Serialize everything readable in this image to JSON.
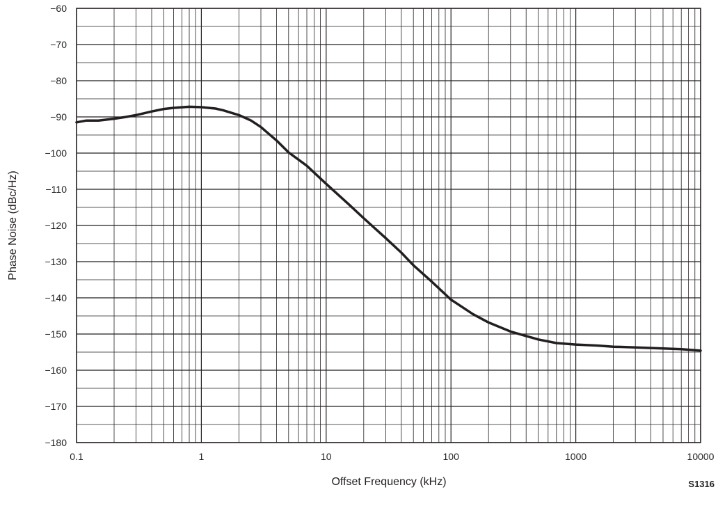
{
  "chart_data": {
    "type": "line",
    "title": "",
    "xlabel": "Offset Frequency (kHz)",
    "ylabel": "Phase Noise (dBc/Hz)",
    "xscale": "log",
    "xlim": [
      0.1,
      10000
    ],
    "ylim": [
      -180,
      -60
    ],
    "grid": true,
    "legend": "none",
    "line_color": "#231f20",
    "grid_color": "#231f20",
    "x_ticks": [
      {
        "value": 0.1,
        "label": "0.1"
      },
      {
        "value": 1,
        "label": "1"
      },
      {
        "value": 10,
        "label": "10"
      },
      {
        "value": 100,
        "label": "100"
      },
      {
        "value": 1000,
        "label": "1000"
      },
      {
        "value": 10000,
        "label": "10000"
      }
    ],
    "y_ticks": [
      {
        "value": -60,
        "label": "−60"
      },
      {
        "value": -70,
        "label": "−70"
      },
      {
        "value": -80,
        "label": "−80"
      },
      {
        "value": -90,
        "label": "−90"
      },
      {
        "value": -100,
        "label": "−100"
      },
      {
        "value": -110,
        "label": "−110"
      },
      {
        "value": -120,
        "label": "−120"
      },
      {
        "value": -130,
        "label": "−130"
      },
      {
        "value": -140,
        "label": "−140"
      },
      {
        "value": -150,
        "label": "−150"
      },
      {
        "value": -160,
        "label": "−160"
      },
      {
        "value": -170,
        "label": "−170"
      },
      {
        "value": -180,
        "label": "−180"
      }
    ],
    "series": [
      {
        "x": [
          0.1,
          0.12,
          0.15,
          0.2,
          0.25,
          0.3,
          0.4,
          0.5,
          0.6,
          0.8,
          1.0,
          1.3,
          1.5,
          2.0,
          2.5,
          3.0,
          4.0,
          5.0,
          7.0,
          10,
          15,
          20,
          30,
          40,
          50,
          70,
          100,
          150,
          200,
          300,
          500,
          700,
          1000,
          1500,
          2000,
          3000,
          5000,
          7000,
          10000
        ],
        "y": [
          -91.5,
          -91.0,
          -91.0,
          -90.5,
          -90.0,
          -89.5,
          -88.5,
          -87.8,
          -87.5,
          -87.2,
          -87.3,
          -87.7,
          -88.2,
          -89.5,
          -91.0,
          -92.8,
          -96.5,
          -99.8,
          -103.5,
          -108.5,
          -114.0,
          -118.0,
          -123.5,
          -127.5,
          -131.0,
          -135.5,
          -140.5,
          -144.5,
          -146.8,
          -149.3,
          -151.5,
          -152.5,
          -152.9,
          -153.2,
          -153.5,
          -153.7,
          -154.0,
          -154.2,
          -154.6
        ]
      }
    ]
  },
  "figure_id": "S1316"
}
